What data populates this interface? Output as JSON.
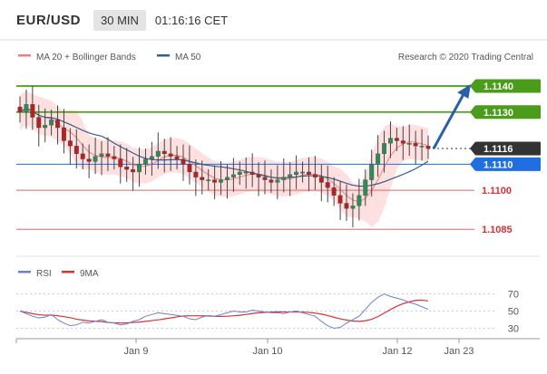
{
  "header": {
    "symbol": "EUR/USD",
    "timeframe": "30 MIN",
    "time": "01:16:16 CET"
  },
  "legend": {
    "ma20": "MA 20 + Bollinger Bands",
    "ma50": "MA 50",
    "ma20_color": "#f08080",
    "ma50_color": "#2f5f8f"
  },
  "credit": "Research © 2020 Trading Central",
  "rsi_legend": {
    "rsi": "RSI",
    "ma9": "9MA",
    "rsi_color": "#6a7fdb",
    "ma9_color": "#e03030"
  },
  "chart_data": {
    "type": "candlestick",
    "x_ticks": [
      "Jan 9",
      "Jan 10",
      "Jan 12",
      "Jan 23"
    ],
    "ylim": [
      1.1075,
      1.1148
    ],
    "levels": [
      {
        "label": "1.1140",
        "value": 1.114,
        "kind": "resistance",
        "color": "#4a9c1a"
      },
      {
        "label": "1.1130",
        "value": 1.113,
        "kind": "resistance",
        "color": "#4a9c1a"
      },
      {
        "label": "1.1116",
        "value": 1.1116,
        "kind": "current",
        "color": "#333333"
      },
      {
        "label": "1.1110",
        "value": 1.111,
        "kind": "pivot",
        "color": "#1f6fe0"
      },
      {
        "label": "1.1100",
        "value": 1.11,
        "kind": "support",
        "color": "#e06666"
      },
      {
        "label": "1.1085",
        "value": 1.1085,
        "kind": "support",
        "color": "#e06666"
      }
    ],
    "closes": [
      1.113,
      1.1133,
      1.1128,
      1.1124,
      1.1125,
      1.1127,
      1.1124,
      1.1119,
      1.1117,
      1.1114,
      1.1112,
      1.1111,
      1.1113,
      1.1114,
      1.1113,
      1.1112,
      1.1109,
      1.1108,
      1.1107,
      1.111,
      1.1112,
      1.1113,
      1.1115,
      1.1114,
      1.1113,
      1.1112,
      1.111,
      1.1107,
      1.1105,
      1.1104,
      1.1104,
      1.1103,
      1.1104,
      1.1105,
      1.1106,
      1.1107,
      1.1107,
      1.1106,
      1.1105,
      1.1104,
      1.1103,
      1.1104,
      1.1105,
      1.1106,
      1.1107,
      1.1107,
      1.1106,
      1.1105,
      1.1103,
      1.1101,
      1.1098,
      1.1095,
      1.1093,
      1.1094,
      1.1098,
      1.1104,
      1.111,
      1.1114,
      1.1118,
      1.112,
      1.1119,
      1.1118,
      1.1118,
      1.1117,
      1.1117,
      1.1116
    ],
    "forecast": {
      "from": 1.1116,
      "to": 1.114
    },
    "rsi": {
      "ticks": [
        70,
        50,
        30
      ],
      "ylim": [
        20,
        80
      ],
      "values": [
        50,
        47,
        44,
        42,
        43,
        46,
        40,
        36,
        33,
        34,
        37,
        36,
        38,
        40,
        37,
        36,
        34,
        35,
        38,
        40,
        44,
        46,
        48,
        47,
        46,
        45,
        44,
        41,
        40,
        43,
        45,
        44,
        46,
        48,
        50,
        49,
        49,
        51,
        50,
        49,
        48,
        48,
        47,
        49,
        50,
        48,
        46,
        44,
        38,
        33,
        30,
        31,
        36,
        40,
        44,
        52,
        60,
        66,
        70,
        67,
        65,
        63,
        60,
        58,
        55,
        52
      ]
    }
  }
}
